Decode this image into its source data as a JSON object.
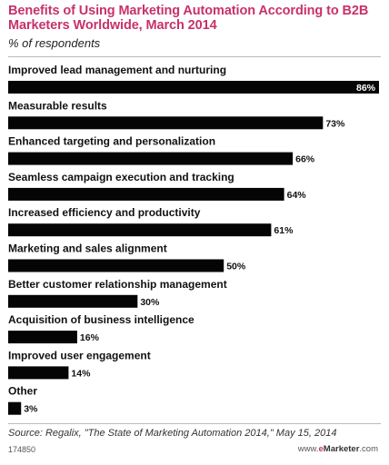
{
  "header": {
    "title": "Benefits of Using Marketing Automation According to B2B Marketers Worldwide, March 2014",
    "subtitle": "% of respondents"
  },
  "chart_data": {
    "type": "bar",
    "orientation": "horizontal",
    "title": "Benefits of Using Marketing Automation According to B2B Marketers Worldwide, March 2014",
    "subtitle": "% of respondents",
    "categories": [
      "Improved lead management and nurturing",
      "Measurable results",
      "Enhanced targeting and personalization",
      "Seamless campaign execution and tracking",
      "Increased efficiency and productivity",
      "Marketing and sales alignment",
      "Better customer relationship management",
      "Acquisition of business intelligence",
      "Improved user engagement",
      "Other"
    ],
    "values": [
      86,
      73,
      66,
      64,
      61,
      50,
      30,
      16,
      14,
      3
    ],
    "value_labels": [
      "86%",
      "73%",
      "66%",
      "64%",
      "61%",
      "50%",
      "30%",
      "16%",
      "14%",
      "3%"
    ],
    "xlim": [
      0,
      86
    ],
    "grid": false,
    "legend": "none",
    "bar_color": "#050505",
    "accent_color": "#c8316a"
  },
  "footer": {
    "source": "Source: Regalix, \"The State of Marketing Automation 2014,\" May 15, 2014",
    "chart_id": "174850",
    "brand_prefix": "www.",
    "brand_e": "e",
    "brand_name": "Marketer",
    "brand_suffix": ".com"
  }
}
